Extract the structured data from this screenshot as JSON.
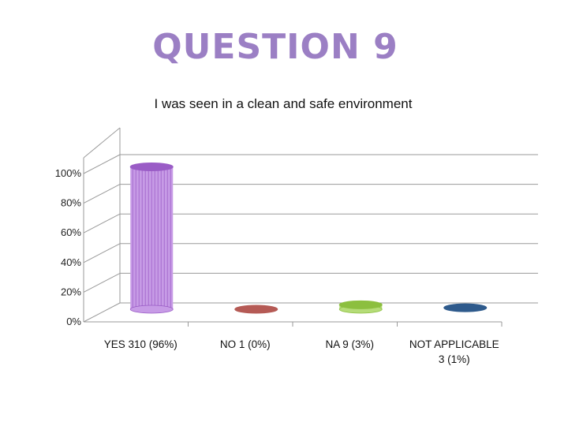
{
  "slide": {
    "title": "QUESTION 9"
  },
  "chart_data": {
    "type": "bar",
    "title": "I was seen in a clean and safe environment",
    "categories": [
      [
        "YES 310 (96%)"
      ],
      [
        "NO 1  (0%)"
      ],
      [
        "NA 9 (3%)"
      ],
      [
        "NOT APPLICABLE",
        "3 (1%)"
      ]
    ],
    "values": [
      96,
      0,
      3,
      1
    ],
    "ylim": [
      0,
      100
    ],
    "yticks": [
      "0%",
      "20%",
      "40%",
      "60%",
      "80%",
      "100%"
    ],
    "grid": true,
    "legend": "none",
    "colors": [
      "#9a5cc6",
      "#b55a55",
      "#8cbf3f",
      "#2e5a8c"
    ],
    "light_colors": [
      "#c79be6",
      "#d08a86",
      "#b5dc78",
      "#5b86b8"
    ]
  }
}
